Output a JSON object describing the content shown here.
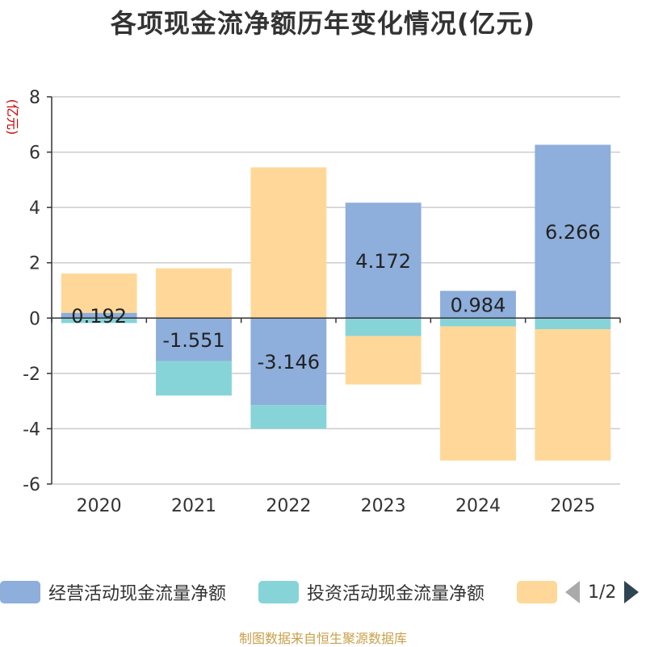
{
  "chart_data": {
    "type": "bar",
    "stacked": true,
    "title": "各项现金流净额历年变化情况(亿元)",
    "ylabel": "(亿元)",
    "ylim": [
      -6,
      8
    ],
    "yticks": [
      8,
      6,
      4,
      2,
      0,
      -2,
      -4,
      -6
    ],
    "categories": [
      "2020",
      "2021",
      "2022",
      "2023",
      "2024",
      "2025"
    ],
    "series": [
      {
        "name": "经营活动现金流量净额",
        "color": "#8eaedb",
        "values": [
          0.192,
          -1.551,
          -3.146,
          4.172,
          0.984,
          6.266
        ]
      },
      {
        "name": "投资活动现金流量净额",
        "color": "#87d4d8",
        "values": [
          -0.18,
          -1.25,
          -0.85,
          -0.65,
          -0.3,
          -0.4
        ]
      },
      {
        "name": "",
        "color": "#ffd899",
        "values": [
          1.42,
          1.8,
          5.45,
          -1.75,
          -4.85,
          -4.75
        ]
      }
    ],
    "data_labels": [
      "0.192",
      "-1.551",
      "-3.146",
      "4.172",
      "0.984",
      "6.266"
    ]
  },
  "legend": {
    "items": [
      {
        "label": "经营活动现金流量净额",
        "color": "#8eaedb"
      },
      {
        "label": "投资活动现金流量净额",
        "color": "#87d4d8"
      },
      {
        "label": "",
        "color": "#ffd899"
      }
    ],
    "pager_text": "1/2"
  },
  "source_text": "制图数据来自恒生聚源数据库"
}
